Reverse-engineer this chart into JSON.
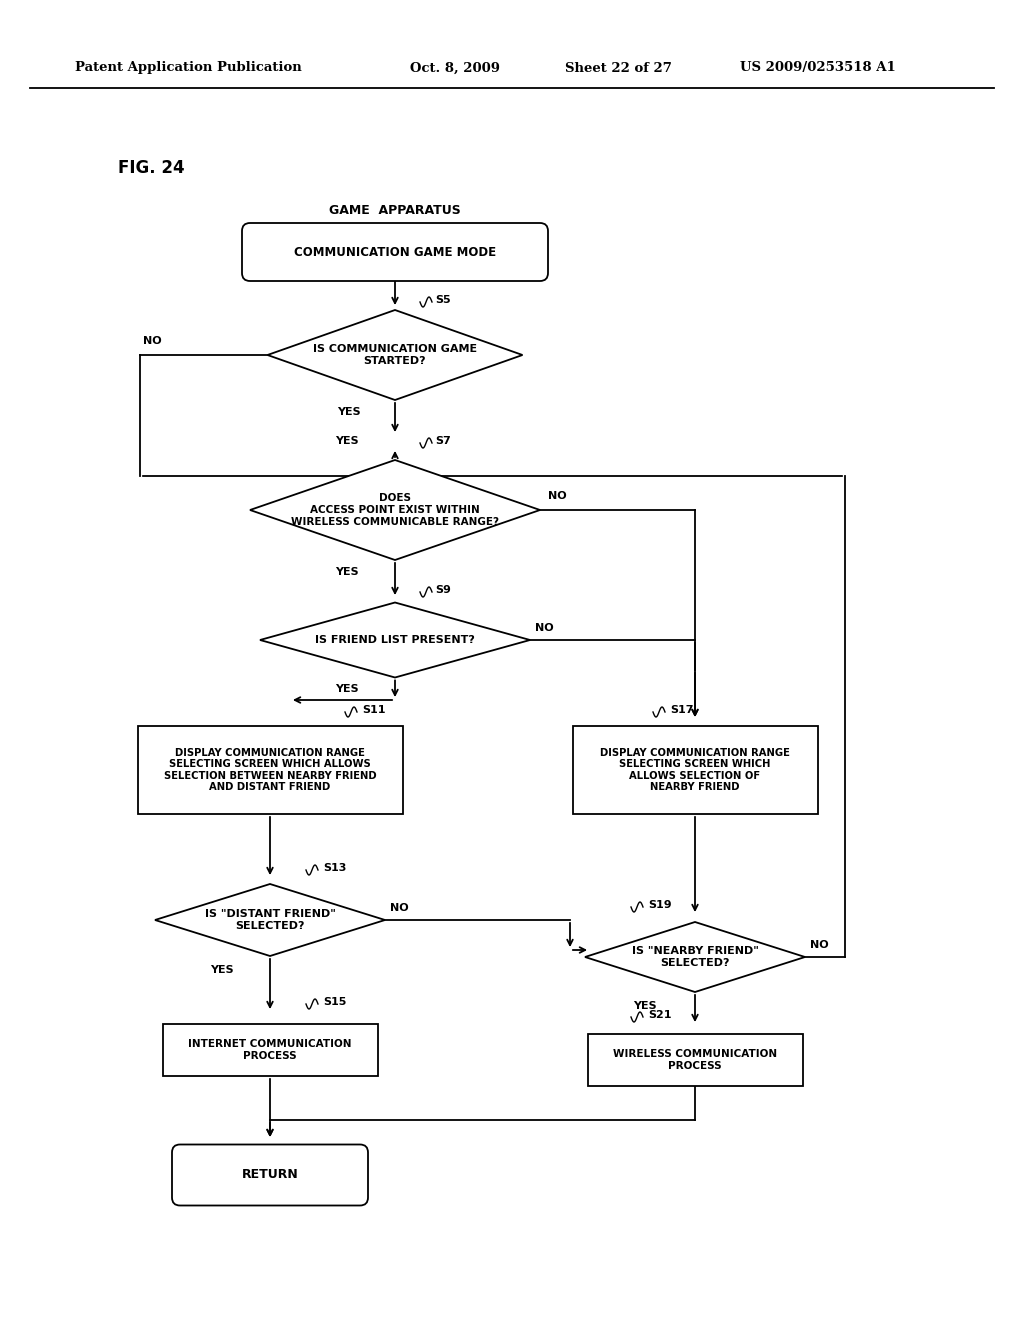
{
  "bg_color": "#ffffff",
  "line_color": "#000000",
  "header_left": "Patent Application Publication",
  "header_mid1": "Oct. 8, 2009",
  "header_mid2": "Sheet 22 of 27",
  "header_right": "US 2009/0253518 A1",
  "fig_label": "FIG. 24",
  "game_apparatus": "GAME  APPARATUS",
  "start_label": "COMMUNICATION GAME MODE",
  "s5_label": "IS COMMUNICATION GAME\nSTARTED?",
  "s5_step": "S5",
  "s7_label": "DOES\nACCESS POINT EXIST WITHIN\nWIRELESS COMMUNICABLE RANGE?",
  "s7_step": "S7",
  "s9_label": "IS FRIEND LIST PRESENT?",
  "s9_step": "S9",
  "s11_label": "DISPLAY COMMUNICATION RANGE\nSELECTING SCREEN WHICH ALLOWS\nSELECTION BETWEEN NEARBY FRIEND\nAND DISTANT FRIEND",
  "s11_step": "S11",
  "s17_label": "DISPLAY COMMUNICATION RANGE\nSELECTING SCREEN WHICH\nALLOWS SELECTION OF\nNEARBY FRIEND",
  "s17_step": "S17",
  "s13_label": "IS \"DISTANT FRIEND\"\nSELECTED?",
  "s13_step": "S13",
  "s19_label": "IS \"NEARBY FRIEND\"\nSELECTED?",
  "s19_step": "S19",
  "s15_label": "INTERNET COMMUNICATION\nPROCESS",
  "s15_step": "S15",
  "s21_label": "WIRELESS COMMUNICATION\nPROCESS",
  "s21_step": "S21",
  "return_label": "RETURN"
}
